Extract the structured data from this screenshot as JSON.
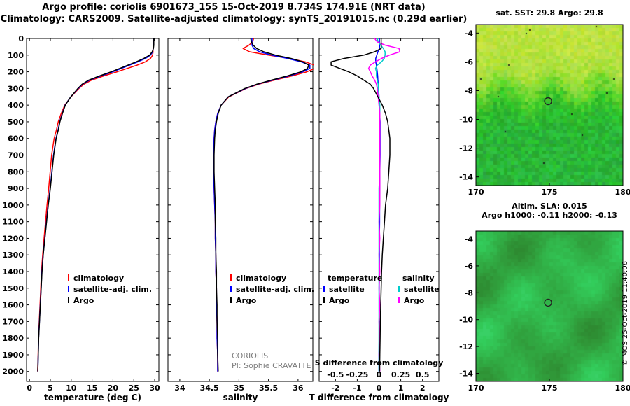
{
  "header": {
    "line1": "Argo profile: coriolis 6901673_155 15-Oct-2019 8.734S 174.91E (NRT data)",
    "line2": "Climatology: CARS2009. Satellite-adjusted climatology: synTS_20191015.nc (0.29d earlier)"
  },
  "annotations": {
    "coriolis_line1": "CORIOLIS",
    "coriolis_line2": "PI: Sophie CRAVATTE",
    "credit": "©IMOS 25-Oct-2019 11:40:06"
  },
  "colors": {
    "climatology": "#ff0000",
    "satellite_adjusted": "#0000ff",
    "argo": "#000000",
    "salinity_satellite": "#00cccc",
    "salinity_argo": "#ff00ff"
  },
  "chart_data": [
    {
      "id": "temperature_profile",
      "type": "line",
      "title": "",
      "xlabel": "temperature (deg C)",
      "ylabel": "",
      "xlim": [
        -0.7,
        31
      ],
      "ylim": [
        0,
        2060
      ],
      "xticks": [
        0,
        5,
        10,
        15,
        20,
        25,
        30
      ],
      "yticks": [
        0,
        100,
        200,
        300,
        400,
        500,
        600,
        700,
        800,
        900,
        1000,
        1100,
        1200,
        1300,
        1400,
        1500,
        1600,
        1700,
        1800,
        1900,
        2000
      ],
      "depths": [
        0,
        20,
        40,
        60,
        80,
        100,
        120,
        140,
        160,
        180,
        200,
        225,
        250,
        275,
        300,
        350,
        400,
        450,
        500,
        550,
        600,
        700,
        800,
        900,
        1000,
        1100,
        1200,
        1300,
        1400,
        1500,
        1600,
        1700,
        1800,
        1900,
        2000
      ],
      "series": [
        {
          "name": "climatology",
          "color": "#ff0000",
          "values": [
            29.7,
            29.7,
            29.7,
            29.6,
            29.6,
            29.5,
            29.0,
            27.8,
            25.8,
            23.4,
            21.0,
            17.8,
            14.9,
            13.0,
            11.85,
            9.95,
            8.45,
            7.6,
            6.9,
            6.45,
            5.9,
            5.3,
            4.95,
            4.6,
            4.2,
            3.85,
            3.5,
            3.15,
            2.88,
            2.7,
            2.52,
            2.34,
            2.15,
            2.06,
            1.97
          ]
        },
        {
          "name": "satellite-adj. clim.",
          "color": "#0000ff",
          "values": [
            29.75,
            29.75,
            29.7,
            29.65,
            29.5,
            29.0,
            27.8,
            26.0,
            24.0,
            22.0,
            20.0,
            17.1,
            14.4,
            12.7,
            11.7,
            9.9,
            8.55,
            7.85,
            7.25,
            6.85,
            6.35,
            5.75,
            5.36,
            4.96,
            4.47,
            4.07,
            3.68,
            3.28,
            2.98,
            2.79,
            2.59,
            2.39,
            2.19,
            2.1,
            2.0
          ]
        },
        {
          "name": "Argo",
          "color": "#000000",
          "values": [
            29.8,
            29.8,
            29.8,
            29.7,
            29.4,
            28.8,
            27.4,
            25.6,
            23.6,
            21.6,
            19.6,
            16.8,
            14.2,
            12.6,
            11.6,
            9.9,
            8.6,
            7.9,
            7.3,
            6.9,
            6.4,
            5.8,
            5.4,
            5.0,
            4.5,
            4.1,
            3.7,
            3.3,
            3.0,
            2.8,
            2.6,
            2.4,
            2.2,
            2.1,
            2.0
          ]
        }
      ]
    },
    {
      "id": "salinity_profile",
      "type": "line",
      "title": "",
      "xlabel": "salinity",
      "ylabel": "",
      "xlim": [
        33.8,
        36.25
      ],
      "ylim": [
        0,
        2060
      ],
      "xticks": [
        34,
        34.5,
        35,
        35.5,
        36
      ],
      "yticks": [
        0,
        100,
        200,
        300,
        400,
        500,
        600,
        700,
        800,
        900,
        1000,
        1100,
        1200,
        1300,
        1400,
        1500,
        1600,
        1700,
        1800,
        1900,
        2000
      ],
      "depths": [
        0,
        20,
        40,
        60,
        80,
        100,
        120,
        140,
        160,
        180,
        200,
        225,
        250,
        275,
        300,
        350,
        400,
        450,
        500,
        550,
        600,
        700,
        800,
        900,
        1000,
        1100,
        1200,
        1300,
        1400,
        1500,
        1600,
        1700,
        1800,
        1900,
        2000
      ],
      "series": [
        {
          "name": "climatology",
          "color": "#ff0000",
          "values": [
            35.25,
            35.23,
            35.17,
            35.07,
            35.18,
            35.5,
            35.85,
            36.12,
            36.28,
            36.28,
            36.15,
            35.9,
            35.6,
            35.33,
            35.12,
            34.83,
            34.7,
            34.64,
            34.61,
            34.59,
            34.58,
            34.57,
            34.57,
            34.58,
            34.59,
            34.6,
            34.6,
            34.61,
            34.61,
            34.62,
            34.62,
            34.63,
            34.63,
            34.64,
            34.64
          ]
        },
        {
          "name": "satellite-adj. clim.",
          "color": "#0000ff",
          "values": [
            35.22,
            35.22,
            35.22,
            35.25,
            35.35,
            35.55,
            35.82,
            36.05,
            36.2,
            36.2,
            36.08,
            35.85,
            35.57,
            35.31,
            35.11,
            34.82,
            34.7,
            34.64,
            34.61,
            34.59,
            34.58,
            34.57,
            34.57,
            34.58,
            34.59,
            34.6,
            34.6,
            34.61,
            34.61,
            34.62,
            34.62,
            34.63,
            34.63,
            34.64,
            34.64
          ]
        },
        {
          "name": "Argo",
          "color": "#000000",
          "values": [
            35.2,
            35.21,
            35.24,
            35.3,
            35.42,
            35.62,
            35.88,
            36.08,
            36.18,
            36.16,
            36.05,
            35.82,
            35.55,
            35.3,
            35.1,
            34.82,
            34.7,
            34.65,
            34.62,
            34.6,
            34.59,
            34.58,
            34.58,
            34.59,
            34.6,
            34.6,
            34.61,
            34.61,
            34.62,
            34.62,
            34.63,
            34.63,
            34.64,
            34.64,
            34.65
          ]
        }
      ]
    },
    {
      "id": "difference_profile",
      "type": "line",
      "title": "",
      "xlabel": "T difference from climatology",
      "xlabel2": "S difference from climatology",
      "ylabel": "",
      "xlim": [
        -2.75,
        2.75
      ],
      "ylim": [
        0,
        2060
      ],
      "xticks": [
        -2,
        -1,
        0,
        1,
        2
      ],
      "xticks2": [
        -0.5,
        -0.25,
        0,
        0.25,
        0.5
      ],
      "s_to_t_scale": 4,
      "yticks": [
        0,
        100,
        200,
        300,
        400,
        500,
        600,
        700,
        800,
        900,
        1000,
        1100,
        1200,
        1300,
        1400,
        1500,
        1600,
        1700,
        1800,
        1900,
        2000
      ],
      "depths": [
        0,
        20,
        40,
        60,
        80,
        100,
        120,
        140,
        160,
        180,
        200,
        225,
        250,
        275,
        300,
        350,
        400,
        450,
        500,
        550,
        600,
        700,
        800,
        900,
        1000,
        1100,
        1200,
        1300,
        1400,
        1500,
        1600,
        1700,
        1800,
        1900,
        2000
      ],
      "legend_groups": [
        {
          "header": "temperature",
          "items": [
            {
              "label": "satellite",
              "color": "#0000ff"
            },
            {
              "label": "Argo",
              "color": "#000000"
            }
          ]
        },
        {
          "header": "salinity",
          "items": [
            {
              "label": "satellite",
              "color": "#00cccc"
            },
            {
              "label": "Argo",
              "color": "#ff00ff"
            }
          ]
        }
      ],
      "series": [
        {
          "name": "temperature satellite",
          "axis": "T",
          "color": "#0000ff",
          "values": [
            0.02,
            0.02,
            0.03,
            0.02,
            -0.05,
            -0.1,
            -0.15,
            -0.15,
            -0.12,
            -0.1,
            -0.08,
            -0.06,
            -0.05,
            -0.03,
            -0.02,
            0.0,
            0.02,
            0.03,
            0.05,
            0.05,
            0.05,
            0.05,
            0.04,
            0.04,
            0.03,
            0.03,
            0.02,
            0.02,
            0.02,
            0.01,
            0.01,
            0.01,
            0.01,
            0.0,
            0.0
          ]
        },
        {
          "name": "salinity satellite",
          "axis": "S",
          "color": "#00cccc",
          "values": [
            -0.02,
            -0.01,
            0.02,
            0.05,
            0.07,
            0.07,
            0.06,
            0.03,
            -0.02,
            -0.04,
            -0.03,
            -0.03,
            -0.02,
            -0.01,
            -0.01,
            0.0,
            0.01,
            0.01,
            0.01,
            0.01,
            0.01,
            0.01,
            0.01,
            0.0,
            0.0,
            0.0,
            0.0,
            0.0,
            0.0,
            0.0,
            0.0,
            0.0,
            0.0,
            0.0,
            0.0
          ]
        },
        {
          "name": "salinity Argo",
          "axis": "S",
          "color": "#ff00ff",
          "values": [
            -0.05,
            -0.02,
            0.07,
            0.23,
            0.24,
            0.12,
            0.03,
            -0.04,
            -0.1,
            -0.12,
            -0.1,
            -0.08,
            -0.05,
            -0.03,
            -0.02,
            -0.01,
            0.0,
            0.01,
            0.01,
            0.01,
            0.01,
            0.01,
            0.01,
            0.01,
            0.01,
            0.0,
            0.01,
            0.0,
            0.01,
            0.0,
            0.01,
            0.0,
            0.01,
            0.0,
            0.01
          ]
        },
        {
          "name": "temperature Argo",
          "axis": "T",
          "color": "#000000",
          "values": [
            0.1,
            0.1,
            0.1,
            0.1,
            -0.2,
            -0.7,
            -1.6,
            -2.2,
            -2.2,
            -1.8,
            -1.4,
            -1.0,
            -0.7,
            -0.4,
            -0.25,
            -0.05,
            0.15,
            0.3,
            0.4,
            0.45,
            0.5,
            0.5,
            0.45,
            0.4,
            0.3,
            0.25,
            0.2,
            0.15,
            0.12,
            0.1,
            0.08,
            0.06,
            0.05,
            0.04,
            0.03
          ]
        }
      ]
    },
    {
      "id": "sst_map",
      "type": "heatmap",
      "title": "sat. SST: 29.8 Argo: 29.8",
      "xlim": [
        170,
        180
      ],
      "ylim": [
        -3.4,
        -14.6
      ],
      "xticks": [
        170,
        175,
        180
      ],
      "yticks": [
        -4,
        -6,
        -8,
        -10,
        -12,
        -14
      ],
      "marker": {
        "lon": 174.91,
        "lat": -8.734
      },
      "palette": [
        "#c8e62e",
        "#a5d934",
        "#6cc83e",
        "#3cb553",
        "#2ba75c"
      ]
    },
    {
      "id": "sla_map",
      "type": "heatmap",
      "title": "Altim. SLA: 0.015",
      "subtitle": "Argo h1000: -0.11 h2000: -0.13",
      "xlim": [
        170,
        180
      ],
      "ylim": [
        -3.4,
        -14.6
      ],
      "xticks": [
        170,
        175,
        180
      ],
      "yticks": [
        -4,
        -6,
        -8,
        -10,
        -12,
        -14
      ],
      "marker": {
        "lon": 174.91,
        "lat": -8.734
      },
      "palette": [
        "#2f9e52",
        "#3fae4d",
        "#55bd48",
        "#6aca44"
      ]
    }
  ]
}
